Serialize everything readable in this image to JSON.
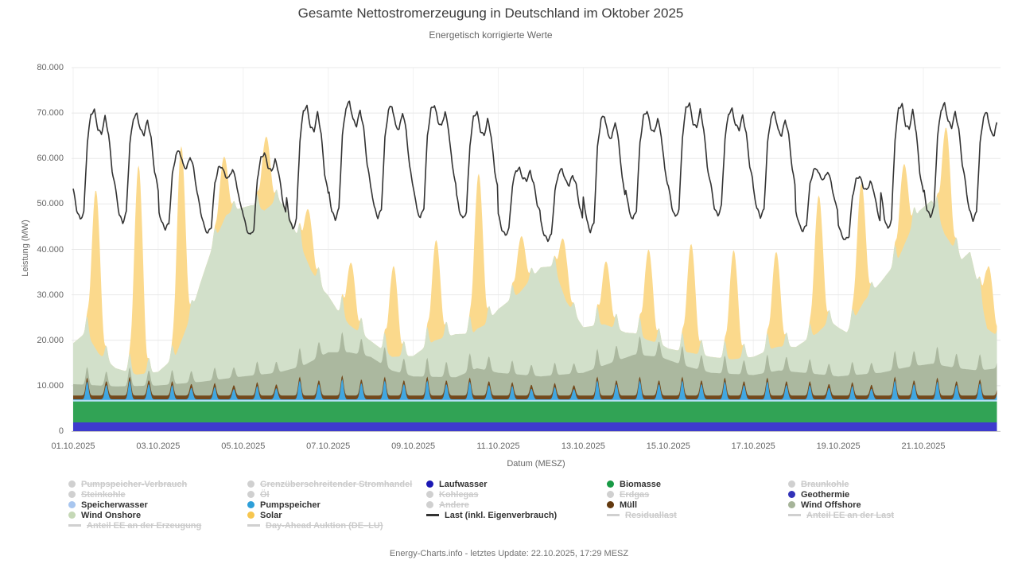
{
  "header": {
    "title": "Gesamte Nettostromerzeugung in Deutschland im Oktober 2025",
    "subtitle": "Energetisch korrigierte Werte"
  },
  "axes": {
    "y_title": "Leistung (MW)",
    "x_title": "Datum (MESZ)",
    "y_tick_labels": [
      "80.000",
      "70.000",
      "60.000",
      "50.000",
      "40.000",
      "30.000",
      "20.000",
      "10.000",
      "0"
    ],
    "y_tick_values": [
      80000,
      70000,
      60000,
      50000,
      40000,
      30000,
      20000,
      10000,
      0
    ],
    "x_tick_labels": [
      "01.10.2025",
      "03.10.2025",
      "05.10.2025",
      "07.10.2025",
      "09.10.2025",
      "11.10.2025",
      "13.10.2025",
      "15.10.2025",
      "17.10.2025",
      "19.10.2025",
      "21.10.2025"
    ],
    "x_tick_days": [
      0,
      2,
      4,
      6,
      8,
      10,
      12,
      14,
      16,
      18,
      20
    ]
  },
  "footer": {
    "text": "Energy-Charts.info - letztes Update: 22.10.2025, 17:29 MESZ"
  },
  "legend": {
    "disabled_color": "#d0d0d0",
    "columns": [
      {
        "x": 86,
        "items": [
          {
            "label": "Pumpspeicher-Verbrauch",
            "marker": "dot",
            "color": "#d0d0d0",
            "enabled": false
          },
          {
            "label": "Steinkohle",
            "marker": "dot",
            "color": "#d0d0d0",
            "enabled": false
          },
          {
            "label": "Speicherwasser",
            "marker": "dot",
            "color": "#a8c6ef",
            "enabled": true
          },
          {
            "label": "Wind Onshore",
            "marker": "dot",
            "color": "#c5d8b6",
            "enabled": true
          },
          {
            "label": "Anteil EE an der Erzeugung",
            "marker": "line",
            "color": "#d0d0d0",
            "enabled": false
          }
        ]
      },
      {
        "x": 311,
        "items": [
          {
            "label": "Grenzüberschreitender Stromhandel",
            "marker": "dot",
            "color": "#d0d0d0",
            "enabled": false
          },
          {
            "label": "Öl",
            "marker": "dot",
            "color": "#d0d0d0",
            "enabled": false
          },
          {
            "label": "Pumpspeicher",
            "marker": "dot",
            "color": "#2e9fd9",
            "enabled": true
          },
          {
            "label": "Solar",
            "marker": "dot",
            "color": "#f7c64f",
            "enabled": true
          },
          {
            "label": "Day-Ahead Auktion (DE–LU)",
            "marker": "line",
            "color": "#d0d0d0",
            "enabled": false
          }
        ]
      },
      {
        "x": 536,
        "items": [
          {
            "label": "Laufwasser",
            "marker": "dot",
            "color": "#1b18b4",
            "enabled": true
          },
          {
            "label": "Kohlegas",
            "marker": "dot",
            "color": "#d0d0d0",
            "enabled": false
          },
          {
            "label": "Andere",
            "marker": "dot",
            "color": "#d0d0d0",
            "enabled": false
          },
          {
            "label": "Last (inkl. Eigenverbrauch)",
            "marker": "line",
            "color": "#333333",
            "enabled": true
          }
        ]
      },
      {
        "x": 763,
        "items": [
          {
            "label": "Biomasse",
            "marker": "dot",
            "color": "#189a45",
            "enabled": true
          },
          {
            "label": "Erdgas",
            "marker": "dot",
            "color": "#d0d0d0",
            "enabled": false
          },
          {
            "label": "Müll",
            "marker": "dot",
            "color": "#63390f",
            "enabled": true
          },
          {
            "label": "Residuallast",
            "marker": "line",
            "color": "#d0d0d0",
            "enabled": false
          }
        ]
      },
      {
        "x": 991,
        "items": [
          {
            "label": "Braunkohle",
            "marker": "dot",
            "color": "#d0d0d0",
            "enabled": false
          },
          {
            "label": "Geothermie",
            "marker": "dot",
            "color": "#3232b8",
            "enabled": true
          },
          {
            "label": "Wind Offshore",
            "marker": "dot",
            "color": "#a6b499",
            "enabled": true
          },
          {
            "label": "Anteil EE an der Last",
            "marker": "line",
            "color": "#d0d0d0",
            "enabled": false
          }
        ]
      }
    ]
  },
  "chart_data": {
    "type": "area",
    "stacking": "normal",
    "title": "Gesamte Nettostromerzeugung in Deutschland im Oktober 2025",
    "subtitle": "Energetisch korrigierte Werte",
    "xlabel": "Datum (MESZ)",
    "ylabel": "Leistung (MW)",
    "unit": "MW",
    "ylim": [
      0,
      80000
    ],
    "x_start": "01.10.2025 00:00",
    "x_end": "22.10.2025 17:30",
    "days_total": 21.73,
    "grid": true,
    "legend_position": "bottom",
    "series": [
      {
        "name": "Geothermie",
        "kind": "flat",
        "value": 25,
        "area_color": "#3a37c0"
      },
      {
        "name": "Laufwasser",
        "kind": "flat",
        "value": 1900,
        "area_color": "#3e3bcd"
      },
      {
        "name": "Biomasse",
        "kind": "flat",
        "value": 4600,
        "area_color": "#31a355"
      },
      {
        "name": "Speicherwasser",
        "kind": "flat",
        "value": 350,
        "area_color": "#b7dff6"
      },
      {
        "name": "Pumpspeicher",
        "kind": "daily_spikes",
        "base": 120,
        "area_color": "#41a7e1",
        "morning_peaks": [
          4000,
          4200,
          3200,
          2800,
          3000,
          4200,
          4500,
          4200,
          4200,
          4000,
          3000,
          2800,
          4200,
          4200,
          4200,
          4000,
          4000,
          3200,
          3000,
          4200,
          4000,
          3600
        ],
        "evening_peaks": [
          3200,
          3400,
          2600,
          2300,
          2500,
          3400,
          3600,
          3400,
          3400,
          3200,
          2400,
          2300,
          3400,
          3400,
          3400,
          3200,
          3200,
          2600,
          2400,
          3400,
          3200,
          3000
        ]
      },
      {
        "name": "Müll",
        "kind": "flat",
        "value": 850,
        "area_color": "#73491c"
      },
      {
        "name": "Wind Offshore",
        "kind": "breakpoints",
        "area_color": "#abb89f",
        "points": [
          [
            0,
            2500
          ],
          [
            1,
            2000
          ],
          [
            2,
            2200
          ],
          [
            3,
            3000
          ],
          [
            4,
            4200
          ],
          [
            4.8,
            5000
          ],
          [
            5.4,
            6500
          ],
          [
            6,
            9500
          ],
          [
            6.5,
            9500
          ],
          [
            7,
            8500
          ],
          [
            7.5,
            5500
          ],
          [
            8,
            4200
          ],
          [
            9,
            4000
          ],
          [
            9.5,
            6000
          ],
          [
            10,
            5000
          ],
          [
            11,
            4200
          ],
          [
            12,
            5000
          ],
          [
            12.6,
            7000
          ],
          [
            13.2,
            9000
          ],
          [
            13.8,
            8500
          ],
          [
            14.4,
            6500
          ],
          [
            15,
            5000
          ],
          [
            16,
            4500
          ],
          [
            16.6,
            5500
          ],
          [
            17.2,
            5000
          ],
          [
            18,
            4200
          ],
          [
            19,
            5000
          ],
          [
            19.6,
            6200
          ],
          [
            20.2,
            7000
          ],
          [
            20.8,
            6000
          ],
          [
            21.3,
            5500
          ],
          [
            21.75,
            6000
          ]
        ]
      },
      {
        "name": "Wind Onshore",
        "kind": "breakpoints",
        "area_color": "#d2e0ca",
        "points": [
          [
            0,
            9000
          ],
          [
            0.3,
            11500
          ],
          [
            0.6,
            7000
          ],
          [
            1,
            4000
          ],
          [
            1.5,
            2500
          ],
          [
            2,
            3000
          ],
          [
            2.4,
            6000
          ],
          [
            2.7,
            13000
          ],
          [
            3,
            22000
          ],
          [
            3.3,
            30000
          ],
          [
            3.6,
            36000
          ],
          [
            3.9,
            37000
          ],
          [
            4.2,
            37500
          ],
          [
            4.5,
            36000
          ],
          [
            4.8,
            38000
          ],
          [
            5,
            36000
          ],
          [
            5.3,
            28000
          ],
          [
            5.6,
            20000
          ],
          [
            5.9,
            14000
          ],
          [
            6.2,
            9500
          ],
          [
            6.5,
            6000
          ],
          [
            7,
            3500
          ],
          [
            7.5,
            3000
          ],
          [
            8,
            4500
          ],
          [
            8.5,
            8000
          ],
          [
            9,
            9500
          ],
          [
            9.4,
            8000
          ],
          [
            9.7,
            10000
          ],
          [
            10,
            14000
          ],
          [
            10.5,
            18000
          ],
          [
            11,
            24000
          ],
          [
            11.3,
            24000
          ],
          [
            11.6,
            16000
          ],
          [
            12,
            10000
          ],
          [
            12.5,
            9000
          ],
          [
            13,
            5500
          ],
          [
            13.5,
            3500
          ],
          [
            14,
            2500
          ],
          [
            14.5,
            3200
          ],
          [
            15,
            3500
          ],
          [
            15.5,
            3200
          ],
          [
            16,
            4000
          ],
          [
            16.5,
            5200
          ],
          [
            17,
            5500
          ],
          [
            17.5,
            9000
          ],
          [
            17.8,
            12000
          ],
          [
            18.2,
            9500
          ],
          [
            18.6,
            16000
          ],
          [
            19,
            20000
          ],
          [
            19.4,
            24000
          ],
          [
            19.9,
            34000
          ],
          [
            20.2,
            36000
          ],
          [
            20.5,
            29000
          ],
          [
            20.9,
            24000
          ],
          [
            21.1,
            26000
          ],
          [
            21.3,
            18000
          ],
          [
            21.5,
            9000
          ],
          [
            21.75,
            7000
          ]
        ]
      },
      {
        "name": "Solar",
        "kind": "daily_bell",
        "window": [
          7.2,
          18.6
        ],
        "area_color": "#fbd98c",
        "peaks": [
          35000,
          46000,
          43000,
          14000,
          16000,
          12000,
          14000,
          20000,
          22000,
          34000,
          12000,
          12000,
          14000,
          20000,
          24000,
          24000,
          21000,
          30000,
          27000,
          18000,
          24000,
          14000
        ]
      }
    ],
    "line_series": {
      "name": "Last (inkl. Eigenverbrauch)",
      "color": "#333333",
      "daily_min": [
        46000,
        45500,
        44000,
        43500,
        42500,
        44000,
        46000,
        46500,
        46500,
        46000,
        43000,
        41500,
        43500,
        46000,
        46500,
        47000,
        46500,
        44000,
        41500,
        44000,
        46500,
        46000
      ],
      "daily_max": [
        70500,
        70000,
        61500,
        58500,
        61000,
        71500,
        72500,
        71500,
        72000,
        70000,
        58000,
        57500,
        69500,
        70500,
        72000,
        71000,
        70000,
        58000,
        56000,
        72000,
        72000,
        70000
      ]
    }
  }
}
